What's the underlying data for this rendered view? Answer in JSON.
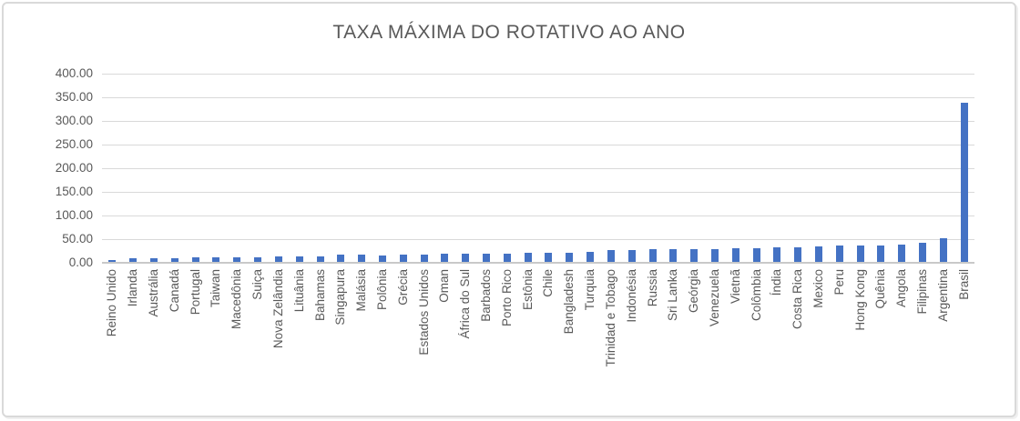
{
  "chart_data": {
    "type": "bar",
    "title": "TAXA MÁXIMA DO ROTATIVO AO ANO",
    "xlabel": "",
    "ylabel": "",
    "ylim": [
      0,
      400
    ],
    "ytick_step": 50,
    "ytick_labels": [
      "400.00",
      "350.00",
      "300.00",
      "250.00",
      "200.00",
      "150.00",
      "100.00",
      "50.00",
      "0.00"
    ],
    "grid": "horizontal",
    "legend": "none",
    "categories": [
      "Reino Unido",
      "Irlanda",
      "Austrália",
      "Canadá",
      "Portugal",
      "Taiwan",
      "Macedônia",
      "Suiça",
      "Nova Zelândia",
      "Lituânia",
      "Bahamas",
      "Singapura",
      "Malásia",
      "Polônia",
      "Grécia",
      "Estados Unidos",
      "Oman",
      "África do Sul",
      "Barbados",
      "Porto Rico",
      "Estônia",
      "Chile",
      "Bangladesh",
      "Turquia",
      "Trinidad e Tobago",
      "Indonésia",
      "Russia",
      "Sri Lanka",
      "Geórgia",
      "Venezuela",
      "Vietnã",
      "Colômbia",
      "Índia",
      "Costa Rica",
      "Mexico",
      "Peru",
      "Hong Kong",
      "Quênia",
      "Angola",
      "Filipinas",
      "Argentina",
      "Brasil"
    ],
    "values": [
      6,
      9.5,
      10,
      10,
      11,
      12,
      12,
      12.5,
      13,
      14,
      14,
      16.5,
      17,
      16,
      16.5,
      18,
      19,
      19,
      20,
      20,
      21,
      21.5,
      22,
      24,
      26,
      26,
      28,
      28,
      29,
      29,
      31,
      31,
      32,
      33,
      35,
      36,
      36,
      37,
      38.5,
      41.5,
      52,
      338
    ],
    "colors": {
      "bar": "#4472c4",
      "gridline": "#d9d9d9",
      "axis_line": "#c9c9c9",
      "text": "#595959",
      "frame_border": "#d9d9d9"
    }
  }
}
